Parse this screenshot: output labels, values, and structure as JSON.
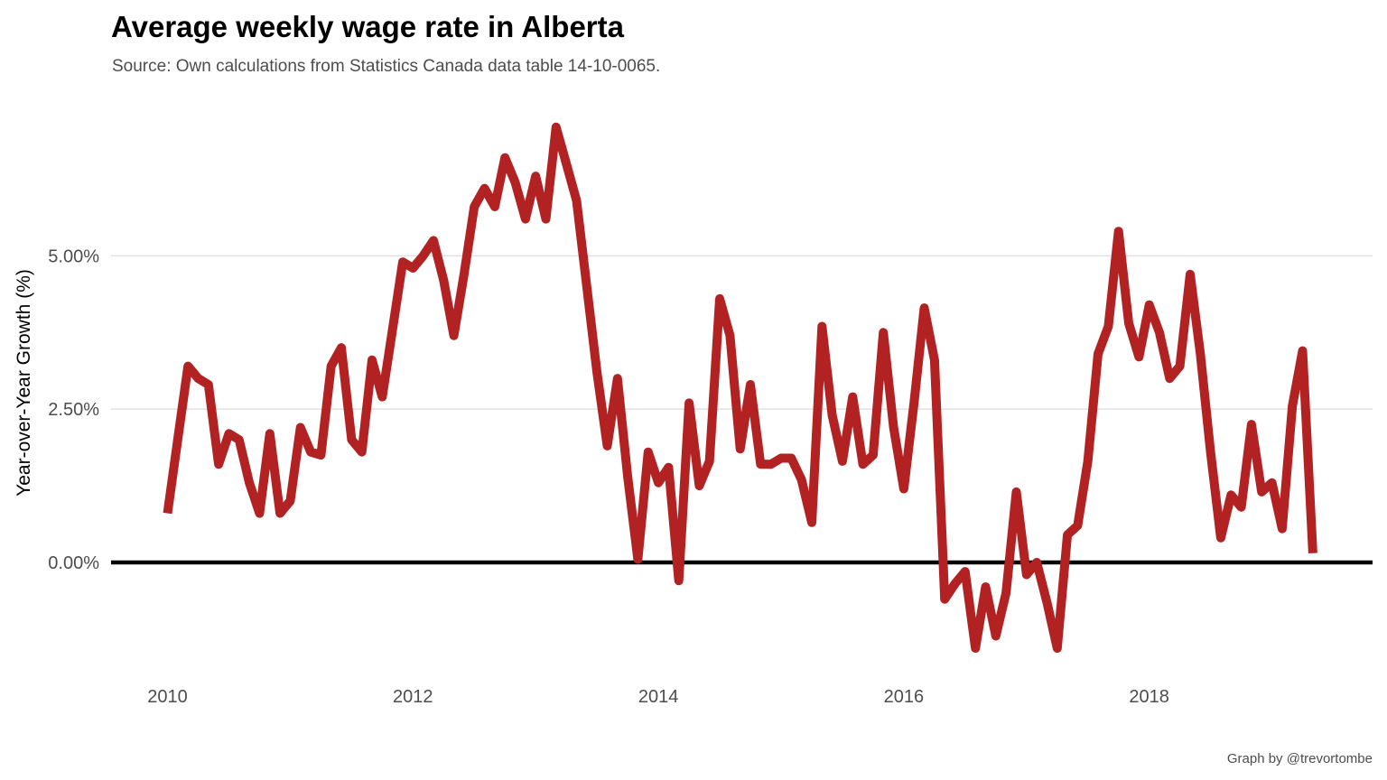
{
  "chart_data": {
    "type": "line",
    "title": "Average weekly wage rate in Alberta",
    "subtitle": "Source: Own calculations from Statistics Canada data table 14-10-0065.",
    "caption": "Graph by @trevortombe",
    "xlabel": "",
    "ylabel": "Year-over-Year Growth (%)",
    "xlim": [
      2009.54,
      2019.82
    ],
    "ylim": [
      -1.9,
      7.7
    ],
    "x_ticks": [
      2010,
      2012,
      2014,
      2016,
      2018
    ],
    "x_tick_labels": [
      "2010",
      "2012",
      "2014",
      "2016",
      "2018"
    ],
    "y_ticks": [
      0,
      2.5,
      5.0
    ],
    "y_tick_labels": [
      "0.00%",
      "2.50%",
      "5.00%"
    ],
    "grid": "horizontal major gridlines",
    "reference_line": {
      "y": 0,
      "color": "#000000"
    },
    "legend": "none",
    "line_color": "#b22222",
    "series": [
      {
        "x": [
          "2010-01",
          "2010-02",
          "2010-03",
          "2010-04",
          "2010-05",
          "2010-06",
          "2010-07",
          "2010-08",
          "2010-09",
          "2010-10",
          "2010-11",
          "2010-12",
          "2011-01",
          "2011-02",
          "2011-03",
          "2011-04",
          "2011-05",
          "2011-06",
          "2011-07",
          "2011-08",
          "2011-09",
          "2011-10",
          "2011-11",
          "2011-12",
          "2012-01",
          "2012-02",
          "2012-03",
          "2012-04",
          "2012-05",
          "2012-06",
          "2012-07",
          "2012-08",
          "2012-09",
          "2012-10",
          "2012-11",
          "2012-12",
          "2013-01",
          "2013-02",
          "2013-03",
          "2013-04",
          "2013-05",
          "2013-06",
          "2013-07",
          "2013-08",
          "2013-09",
          "2013-10",
          "2013-11",
          "2013-12",
          "2014-01",
          "2014-02",
          "2014-03",
          "2014-04",
          "2014-05",
          "2014-06",
          "2014-07",
          "2014-08",
          "2014-09",
          "2014-10",
          "2014-11",
          "2014-12",
          "2015-01",
          "2015-02",
          "2015-03",
          "2015-04",
          "2015-05",
          "2015-06",
          "2015-07",
          "2015-08",
          "2015-09",
          "2015-10",
          "2015-11",
          "2015-12",
          "2016-01",
          "2016-02",
          "2016-03",
          "2016-04",
          "2016-05",
          "2016-06",
          "2016-07",
          "2016-08",
          "2016-09",
          "2016-10",
          "2016-11",
          "2016-12",
          "2017-01",
          "2017-02",
          "2017-03",
          "2017-04",
          "2017-05",
          "2017-06",
          "2017-07",
          "2017-08",
          "2017-09",
          "2017-10",
          "2017-11",
          "2017-12",
          "2018-01",
          "2018-02",
          "2018-03",
          "2018-04",
          "2018-05",
          "2018-06",
          "2018-07",
          "2018-08",
          "2018-09",
          "2018-10",
          "2018-11",
          "2018-12",
          "2019-01",
          "2019-02",
          "2019-03",
          "2019-04",
          "2019-05"
        ],
        "values": [
          0.8,
          2.0,
          3.2,
          3.0,
          2.9,
          1.6,
          2.1,
          2.0,
          1.3,
          0.8,
          2.1,
          0.8,
          1.0,
          2.2,
          1.8,
          1.75,
          3.2,
          3.5,
          2.0,
          1.8,
          3.3,
          2.7,
          3.8,
          4.9,
          4.8,
          5.0,
          5.25,
          4.6,
          3.7,
          4.7,
          5.8,
          6.1,
          5.8,
          6.6,
          6.2,
          5.6,
          6.3,
          5.6,
          7.1,
          6.5,
          5.9,
          4.5,
          3.1,
          1.9,
          3.0,
          1.4,
          0.05,
          1.8,
          1.3,
          1.55,
          -0.3,
          2.6,
          1.25,
          1.65,
          4.3,
          3.7,
          1.85,
          2.9,
          1.6,
          1.6,
          1.7,
          1.7,
          1.35,
          0.65,
          3.85,
          2.4,
          1.65,
          2.7,
          1.6,
          1.75,
          3.75,
          2.2,
          1.2,
          2.6,
          4.15,
          3.3,
          -0.6,
          -0.35,
          -0.15,
          -1.4,
          -0.4,
          -1.2,
          -0.5,
          1.15,
          -0.2,
          0.0,
          -0.65,
          -1.4,
          0.45,
          0.6,
          1.65,
          3.4,
          3.85,
          5.4,
          3.9,
          3.35,
          4.2,
          3.75,
          3.0,
          3.2,
          4.7,
          3.4,
          1.8,
          0.4,
          1.1,
          0.9,
          2.25,
          1.15,
          1.3,
          0.55,
          2.55,
          3.45,
          0.15
        ]
      }
    ]
  }
}
